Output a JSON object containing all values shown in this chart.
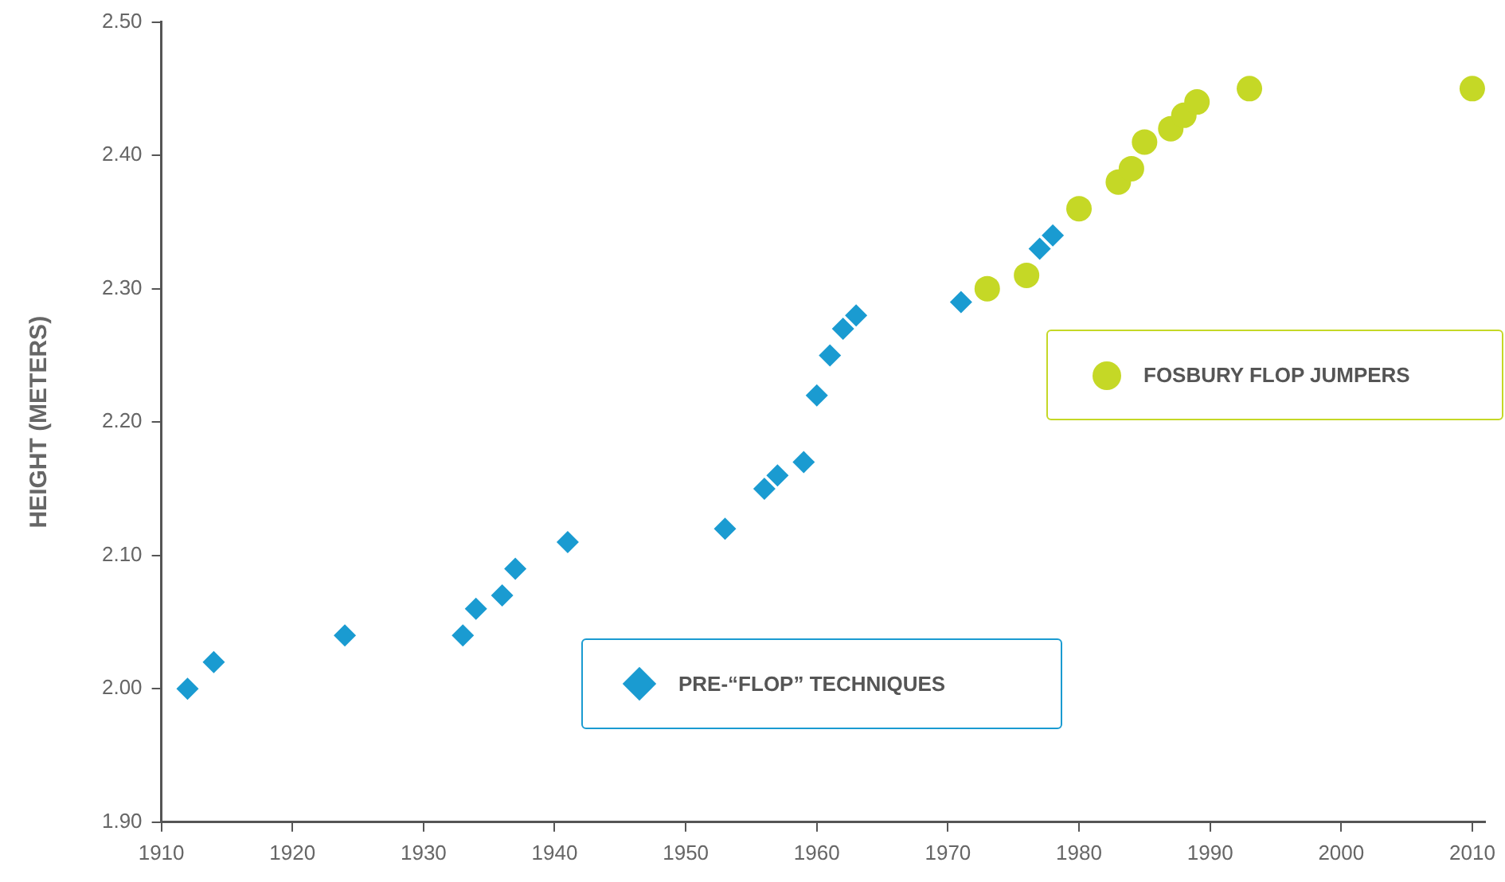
{
  "chart_data": {
    "type": "scatter",
    "ylabel": "HEIGHT (METERS)",
    "xlim": [
      1910,
      2011
    ],
    "xticks": [
      1910,
      1920,
      1930,
      1940,
      1950,
      1960,
      1970,
      1980,
      1990,
      2000,
      2010
    ],
    "ylim": [
      1.9,
      2.5
    ],
    "yticks": [
      {
        "value": 1.9,
        "label": "1.90"
      },
      {
        "value": 2.0,
        "label": "2.00"
      },
      {
        "value": 2.1,
        "label": "2.10"
      },
      {
        "value": 2.2,
        "label": "2.20"
      },
      {
        "value": 2.3,
        "label": "2.30"
      },
      {
        "value": 2.4,
        "label": "2.40"
      },
      {
        "value": 2.5,
        "label": "2.50"
      }
    ],
    "grid": false,
    "legend": "right",
    "series": [
      {
        "name": "PRE-“FLOP” TECHNIQUES",
        "color": "#1a9bd1",
        "marker": "diamond",
        "x": [
          1912,
          1914,
          1924,
          1933,
          1934,
          1936,
          1937,
          1941,
          1953,
          1956,
          1957,
          1959,
          1960,
          1961,
          1962,
          1963,
          1971,
          1977,
          1978
        ],
        "values": [
          2.0,
          2.02,
          2.04,
          2.04,
          2.06,
          2.07,
          2.09,
          2.11,
          2.12,
          2.15,
          2.16,
          2.17,
          2.22,
          2.25,
          2.27,
          2.28,
          2.29,
          2.33,
          2.34
        ]
      },
      {
        "name": "FOSBURY FLOP JUMPERS",
        "color": "#c5d826",
        "marker": "circle",
        "x": [
          1973,
          1976,
          1980,
          1983,
          1984,
          1985,
          1987,
          1988,
          1989,
          1993,
          2010
        ],
        "values": [
          2.3,
          2.31,
          2.36,
          2.38,
          2.39,
          2.41,
          2.42,
          2.43,
          2.44,
          2.45,
          2.45
        ]
      }
    ]
  }
}
